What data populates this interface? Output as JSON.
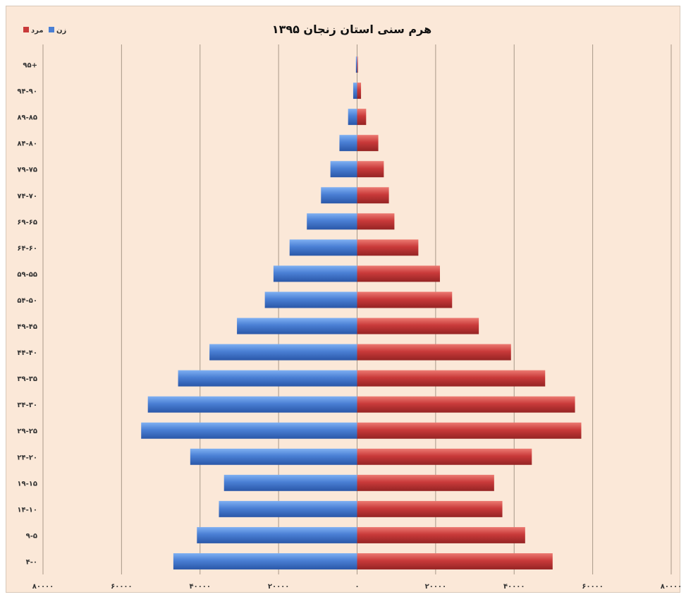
{
  "chart_data": {
    "type": "bar",
    "orientation": "horizontal",
    "title": "هرم سنی استان زنجان ۱۳۹۵",
    "categories": [
      "۹۵+",
      "۹۴-۹۰",
      "۸۹-۸۵",
      "۸۴-۸۰",
      "۷۹-۷۵",
      "۷۴-۷۰",
      "۶۹-۶۵",
      "۶۴-۶۰",
      "۵۹-۵۵",
      "۵۴-۵۰",
      "۴۹-۴۵",
      "۴۴-۴۰",
      "۳۹-۳۵",
      "۳۴-۳۰",
      "۲۹-۲۵",
      "۲۴-۲۰",
      "۱۹-۱۵",
      "۱۴-۱۰",
      "۹-۵",
      "۴-۰"
    ],
    "series": [
      {
        "name": "زن",
        "color": "#4a7fd4",
        "side": "left",
        "values": [
          300,
          1000,
          2300,
          4500,
          6800,
          9200,
          12800,
          17200,
          21300,
          23500,
          30600,
          37600,
          45600,
          53300,
          55000,
          42500,
          33900,
          35200,
          40800,
          46800
        ]
      },
      {
        "name": "مرد",
        "color": "#c93a3a",
        "side": "right",
        "values": [
          200,
          1000,
          2300,
          5400,
          6800,
          8100,
          9500,
          15600,
          21100,
          24200,
          31000,
          39200,
          47900,
          55500,
          57100,
          44500,
          34900,
          37000,
          42800,
          49800
        ]
      }
    ],
    "x_tick_labels": [
      "۸۰۰۰۰",
      "۶۰۰۰۰",
      "۴۰۰۰۰",
      "۲۰۰۰۰",
      "۰",
      "۲۰۰۰۰",
      "۴۰۰۰۰",
      "۶۰۰۰۰",
      "۸۰۰۰۰"
    ],
    "x_ticks": [
      -80000,
      -60000,
      -40000,
      -20000,
      0,
      20000,
      40000,
      60000,
      80000
    ],
    "xlim": [
      -80000,
      80000
    ],
    "grid": true,
    "legend_position": "top-left",
    "background_color": "#fbe8d8"
  }
}
